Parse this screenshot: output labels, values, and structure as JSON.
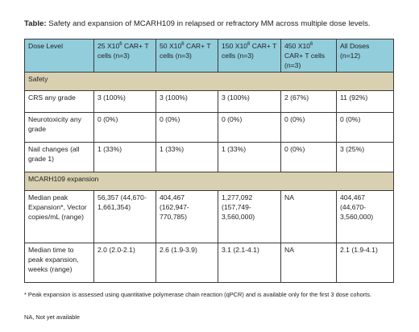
{
  "caption": {
    "label": "Table:",
    "text": " Safety and expansion of MCARH109 in relapsed or refractory MM across multiple dose levels."
  },
  "header": {
    "c0": "Dose Level",
    "c1": {
      "pre": "25 X10",
      "sup": "6",
      "post": " CAR+ T cells (n=3)"
    },
    "c2": {
      "pre": "50 X10",
      "sup": "6",
      "post": " CAR+ T cells (n=3)"
    },
    "c3": {
      "pre": "150 X10",
      "sup": "6",
      "post": " CAR+ T cells (n=3)"
    },
    "c4": {
      "pre": "450 X10",
      "sup": "6",
      "post": " CAR+ T cells (n=3)"
    },
    "c5": "All Doses (n=12)"
  },
  "sections": {
    "safety": "Safety",
    "expansion": "MCARH109 expansion"
  },
  "rows": [
    {
      "label": "CRS any grade",
      "values": [
        "3 (100%)",
        "3 (100%)",
        "3 (100%)",
        "2 (67%)",
        "11 (92%)"
      ]
    },
    {
      "label": "Neurotoxicity any grade",
      "values": [
        "0 (0%)",
        "0 (0%)",
        "0 (0%)",
        "0 (0%)",
        "0 (0%)"
      ]
    },
    {
      "label": "Nail changes (all grade 1)",
      "values": [
        "1 (33%)",
        "1 (33%)",
        "1 (33%)",
        "0 (0%)",
        "3 (25%)"
      ]
    },
    {
      "label": "Median peak Expansion*, Vector copies/mL (range)",
      "values": [
        "56,357 (44,670-1,661,354)",
        "404,467 (162,947-770,785)",
        "1,277,092 (157,749-3,560,000)",
        "NA",
        "404,467 (44,670-3,560,000)"
      ]
    },
    {
      "label": "Median time to peak expansion, weeks (range)",
      "values": [
        "2.0 (2.0-2.1)",
        "2.6 (1.9-3.9)",
        "3.1 (2.1-4.1)",
        "NA",
        "2.1 (1.9-4.1)"
      ]
    }
  ],
  "footnote": "* Peak expansion is assessed using quantitative polymerase chain reaction (qPCR) and is available only for the first 3 dose cohorts.",
  "na_note": "NA, Not yet available"
}
